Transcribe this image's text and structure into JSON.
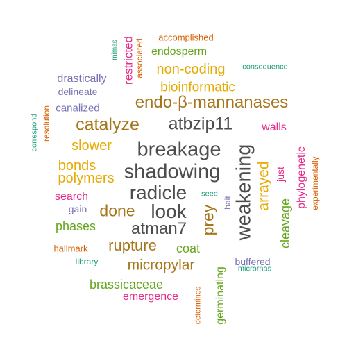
{
  "colors": {
    "gray": "#4d4d4d",
    "brown": "#a6761d",
    "gold": "#e6ab02",
    "green": "#66a61e",
    "magenta": "#e7298a",
    "purple": "#7570b3",
    "orange": "#d95f02",
    "teal": "#1b9e77"
  },
  "words": [
    {
      "text": "breakage",
      "color": "gray",
      "vertical": false
    },
    {
      "text": "shadowing",
      "color": "gray",
      "vertical": false
    },
    {
      "text": "radicle",
      "color": "gray",
      "vertical": false
    },
    {
      "text": "look",
      "color": "gray",
      "vertical": false
    },
    {
      "text": "weakening",
      "color": "gray",
      "vertical": true
    },
    {
      "text": "atbzip11",
      "color": "gray",
      "vertical": false
    },
    {
      "text": "atman7",
      "color": "gray",
      "vertical": false
    },
    {
      "text": "endo-β-mannanases",
      "color": "brown",
      "vertical": false
    },
    {
      "text": "catalyze",
      "color": "brown",
      "vertical": false
    },
    {
      "text": "done",
      "color": "brown",
      "vertical": false
    },
    {
      "text": "rupture",
      "color": "brown",
      "vertical": false
    },
    {
      "text": "micropylar",
      "color": "brown",
      "vertical": false
    },
    {
      "text": "prey",
      "color": "brown",
      "vertical": true
    },
    {
      "text": "bioinformatic",
      "color": "gold",
      "vertical": false
    },
    {
      "text": "non-coding",
      "color": "gold",
      "vertical": false
    },
    {
      "text": "slower",
      "color": "gold",
      "vertical": false
    },
    {
      "text": "bonds",
      "color": "gold",
      "vertical": false
    },
    {
      "text": "polymers",
      "color": "gold",
      "vertical": false
    },
    {
      "text": "arrayed",
      "color": "gold",
      "vertical": true
    },
    {
      "text": "endosperm",
      "color": "green",
      "vertical": false
    },
    {
      "text": "phases",
      "color": "green",
      "vertical": false
    },
    {
      "text": "coat",
      "color": "green",
      "vertical": false
    },
    {
      "text": "brassicaceae",
      "color": "green",
      "vertical": false
    },
    {
      "text": "cleavage",
      "color": "green",
      "vertical": true
    },
    {
      "text": "germinating",
      "color": "green",
      "vertical": true
    },
    {
      "text": "restricted",
      "color": "magenta",
      "vertical": true
    },
    {
      "text": "walls",
      "color": "magenta",
      "vertical": false
    },
    {
      "text": "search",
      "color": "magenta",
      "vertical": false
    },
    {
      "text": "emergence",
      "color": "magenta",
      "vertical": false
    },
    {
      "text": "phylogenetic",
      "color": "magenta",
      "vertical": true
    },
    {
      "text": "just",
      "color": "magenta",
      "vertical": true
    },
    {
      "text": "drastically",
      "color": "purple",
      "vertical": false
    },
    {
      "text": "delineate",
      "color": "purple",
      "vertical": false
    },
    {
      "text": "canalized",
      "color": "purple",
      "vertical": false
    },
    {
      "text": "gain",
      "color": "purple",
      "vertical": false
    },
    {
      "text": "buffered",
      "color": "purple",
      "vertical": false
    },
    {
      "text": "bait",
      "color": "purple",
      "vertical": true
    },
    {
      "text": "accomplished",
      "color": "orange",
      "vertical": false
    },
    {
      "text": "associated",
      "color": "orange",
      "vertical": true
    },
    {
      "text": "resolution",
      "color": "orange",
      "vertical": true
    },
    {
      "text": "experimentally",
      "color": "orange",
      "vertical": true
    },
    {
      "text": "hallmark",
      "color": "orange",
      "vertical": false
    },
    {
      "text": "determines",
      "color": "orange",
      "vertical": true
    },
    {
      "text": "mimas",
      "color": "teal",
      "vertical": true
    },
    {
      "text": "consequence",
      "color": "teal",
      "vertical": false
    },
    {
      "text": "correspond",
      "color": "teal",
      "vertical": true
    },
    {
      "text": "seed",
      "color": "teal",
      "vertical": false
    },
    {
      "text": "library",
      "color": "teal",
      "vertical": false
    },
    {
      "text": "micrornas",
      "color": "teal",
      "vertical": false
    }
  ]
}
